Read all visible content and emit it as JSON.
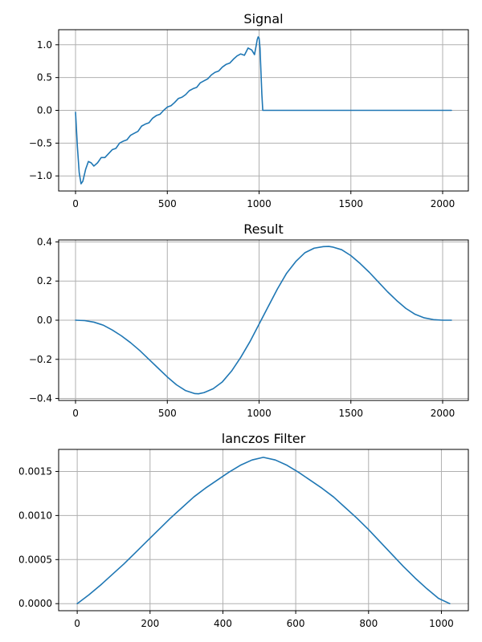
{
  "chart_data": [
    {
      "type": "line",
      "title": "Signal",
      "xlabel": "",
      "ylabel": "",
      "grid": true,
      "xlim": [
        -92,
        2140
      ],
      "ylim": [
        -1.23,
        1.23
      ],
      "xticks": [
        0,
        500,
        1000,
        1500,
        2000
      ],
      "xtick_labels": [
        "0",
        "500",
        "1000",
        "1500",
        "2000"
      ],
      "yticks": [
        1.0,
        0.5,
        0.0,
        -0.5,
        -1.0
      ],
      "ytick_labels": [
        "1.0",
        "0.5",
        "0.0",
        "−0.5",
        "−1.0"
      ],
      "series": [
        {
          "color": "#1f77b4",
          "x": [
            0,
            10,
            20,
            30,
            40,
            55,
            70,
            85,
            100,
            120,
            140,
            160,
            180,
            200,
            220,
            240,
            260,
            280,
            300,
            320,
            340,
            360,
            380,
            400,
            420,
            440,
            460,
            480,
            500,
            520,
            540,
            560,
            580,
            600,
            620,
            640,
            660,
            680,
            700,
            720,
            740,
            760,
            780,
            800,
            820,
            840,
            860,
            880,
            900,
            920,
            940,
            960,
            975,
            985,
            990,
            995,
            1000,
            1005,
            1010,
            1015,
            1020,
            1030,
            1200,
            1500,
            1800,
            2048
          ],
          "y": [
            -0.03,
            -0.55,
            -0.95,
            -1.12,
            -1.08,
            -0.9,
            -0.78,
            -0.8,
            -0.85,
            -0.8,
            -0.72,
            -0.72,
            -0.66,
            -0.6,
            -0.58,
            -0.5,
            -0.47,
            -0.45,
            -0.38,
            -0.35,
            -0.32,
            -0.24,
            -0.21,
            -0.19,
            -0.12,
            -0.08,
            -0.06,
            0.0,
            0.05,
            0.07,
            0.12,
            0.18,
            0.2,
            0.24,
            0.3,
            0.33,
            0.35,
            0.42,
            0.45,
            0.48,
            0.54,
            0.58,
            0.6,
            0.66,
            0.7,
            0.72,
            0.78,
            0.83,
            0.86,
            0.84,
            0.95,
            0.92,
            0.85,
            1.0,
            1.08,
            1.12,
            1.1,
            0.95,
            0.6,
            0.25,
            0.0,
            0.0,
            0.0,
            0.0,
            0.0,
            0.0
          ]
        }
      ]
    },
    {
      "type": "line",
      "title": "Result",
      "xlabel": "",
      "ylabel": "",
      "grid": true,
      "xlim": [
        -92,
        2140
      ],
      "ylim": [
        -0.41,
        0.41
      ],
      "xticks": [
        0,
        500,
        1000,
        1500,
        2000
      ],
      "xtick_labels": [
        "0",
        "500",
        "1000",
        "1500",
        "2000"
      ],
      "yticks": [
        0.4,
        0.2,
        0.0,
        -0.2,
        -0.4
      ],
      "ytick_labels": [
        "0.4",
        "0.2",
        "0.0",
        "−0.2",
        "−0.4"
      ],
      "series": [
        {
          "color": "#1f77b4",
          "x": [
            0,
            50,
            100,
            150,
            200,
            250,
            300,
            350,
            400,
            450,
            500,
            550,
            600,
            650,
            670,
            700,
            750,
            800,
            850,
            900,
            950,
            1000,
            1050,
            1100,
            1150,
            1200,
            1250,
            1300,
            1350,
            1380,
            1400,
            1450,
            1500,
            1550,
            1600,
            1650,
            1700,
            1750,
            1800,
            1850,
            1900,
            1950,
            2000,
            2048
          ],
          "y": [
            0.0,
            -0.002,
            -0.01,
            -0.025,
            -0.05,
            -0.08,
            -0.115,
            -0.155,
            -0.2,
            -0.245,
            -0.29,
            -0.33,
            -0.36,
            -0.375,
            -0.376,
            -0.37,
            -0.35,
            -0.315,
            -0.26,
            -0.19,
            -0.11,
            -0.02,
            0.07,
            0.16,
            0.24,
            0.3,
            0.345,
            0.368,
            0.376,
            0.377,
            0.374,
            0.36,
            0.33,
            0.29,
            0.245,
            0.195,
            0.145,
            0.1,
            0.06,
            0.03,
            0.012,
            0.003,
            0.0,
            0.0
          ]
        }
      ]
    },
    {
      "type": "line",
      "title": "lanczos Filter",
      "xlabel": "",
      "ylabel": "",
      "grid": true,
      "xlim": [
        -51,
        1074
      ],
      "ylim": [
        -8e-05,
        0.00175
      ],
      "xticks": [
        0,
        200,
        400,
        600,
        800,
        1000
      ],
      "xtick_labels": [
        "0",
        "200",
        "400",
        "600",
        "800",
        "1000"
      ],
      "yticks": [
        0.0015,
        0.001,
        0.0005,
        0.0
      ],
      "ytick_labels": [
        "0.0015",
        "0.0010",
        "0.0005",
        "0.0000"
      ],
      "series": [
        {
          "color": "#1f77b4",
          "x": [
            0,
            32,
            64,
            96,
            128,
            160,
            192,
            224,
            256,
            288,
            320,
            352,
            384,
            416,
            448,
            480,
            511,
            544,
            576,
            608,
            640,
            672,
            704,
            736,
            768,
            800,
            832,
            864,
            896,
            928,
            960,
            992,
            1023
          ],
          "y": [
            0.0,
            0.0001,
            0.00021,
            0.00033,
            0.00045,
            0.00058,
            0.00071,
            0.00084,
            0.00097,
            0.00109,
            0.00121,
            0.00131,
            0.0014,
            0.00149,
            0.00157,
            0.00163,
            0.00166,
            0.00163,
            0.00157,
            0.00149,
            0.0014,
            0.00131,
            0.00121,
            0.00109,
            0.00097,
            0.00084,
            0.0007,
            0.00056,
            0.00042,
            0.00029,
            0.00017,
            6e-05,
            0.0
          ]
        }
      ]
    }
  ]
}
